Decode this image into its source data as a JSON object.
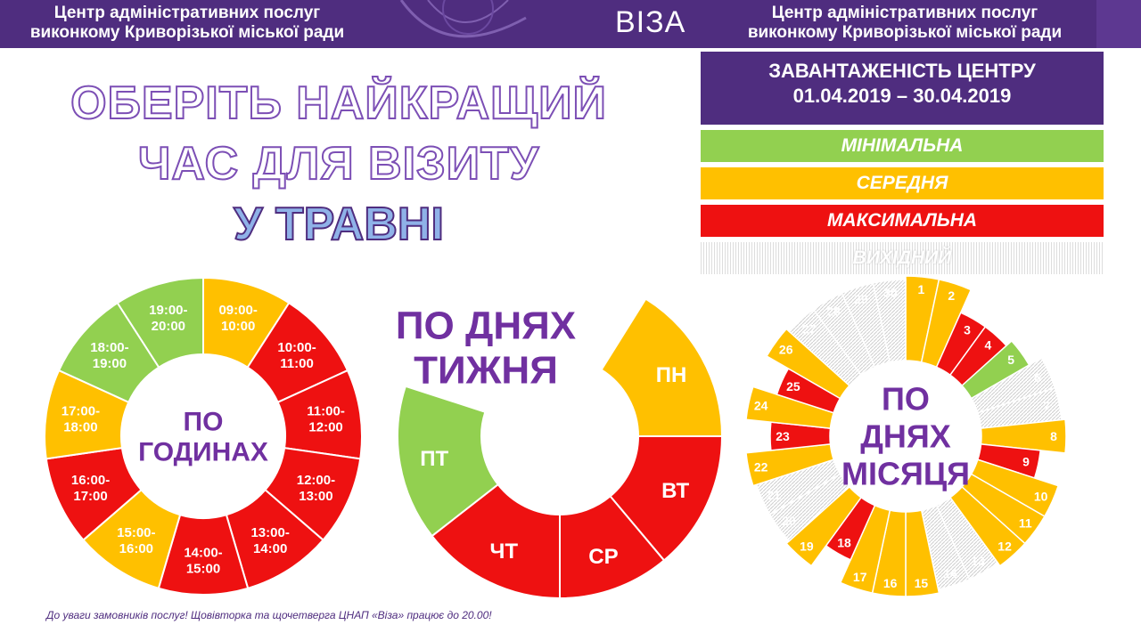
{
  "header": {
    "org_line1": "Центр адміністративних послуг",
    "org_line2": "виконкому Криворізької міської ради",
    "logo": "ВІЗА"
  },
  "title": {
    "line1": "ОБЕРІТЬ НАЙКРАЩИЙ",
    "line2": "ЧАС ДЛЯ ВІЗИТУ",
    "line3": "У ТРАВНІ"
  },
  "legend": {
    "title_line1": "ЗАВАНТАЖЕНІСТЬ ЦЕНТРУ",
    "title_line2": "01.04.2019 – 30.04.2019",
    "levels": [
      {
        "key": "min",
        "label": "МІНІМАЛЬНА",
        "color": "#92d050"
      },
      {
        "key": "mid",
        "label": "СЕРЕДНЯ",
        "color": "#ffc000"
      },
      {
        "key": "max",
        "label": "МАКСИМАЛЬНА",
        "color": "#ee1111"
      },
      {
        "key": "off",
        "label": "ВИХІДНИЙ",
        "color": "#dddddd"
      }
    ]
  },
  "colors": {
    "purple": "#4f2d7f",
    "text_purple": "#7030a0",
    "min": "#92d050",
    "mid": "#ffc000",
    "max": "#ee1111",
    "off": "#dddddd"
  },
  "footnote": "До уваги замовників послуг!  Щовівторка та щочетверга ЦНАП «Віза» працює до 20.00!",
  "chart_data": [
    {
      "type": "pie",
      "variant": "donut",
      "center_label": [
        "ПО",
        "ГОДИНАХ"
      ],
      "categories": [
        [
          "09:00-",
          "10:00"
        ],
        [
          "10:00-",
          "11:00"
        ],
        [
          "11:00-",
          "12:00"
        ],
        [
          "12:00-",
          "13:00"
        ],
        [
          "13:00-",
          "14:00"
        ],
        [
          "14:00-",
          "15:00"
        ],
        [
          "15:00-",
          "16:00"
        ],
        [
          "16:00-",
          "17:00"
        ],
        [
          "17:00-",
          "18:00"
        ],
        [
          "18:00-",
          "19:00"
        ],
        [
          "19:00-",
          "20:00"
        ]
      ],
      "load": [
        "mid",
        "max",
        "max",
        "max",
        "max",
        "max",
        "mid",
        "max",
        "mid",
        "min",
        "min"
      ]
    },
    {
      "type": "pie",
      "variant": "partial-donut",
      "center_label": [
        "ПО ДНЯХ",
        "ТИЖНЯ"
      ],
      "categories": [
        "ПН",
        "ВТ",
        "СР",
        "ЧТ",
        "ПТ"
      ],
      "load": [
        "mid",
        "max",
        "max",
        "max",
        "min"
      ]
    },
    {
      "type": "pie",
      "variant": "radial-month",
      "center_label": [
        "ПО",
        "ДНЯХ",
        "МІСЯЦЯ"
      ],
      "categories": [
        "1",
        "2",
        "3",
        "4",
        "5",
        "6",
        "7",
        "8",
        "9",
        "10",
        "11",
        "12",
        "13",
        "14",
        "15",
        "16",
        "17",
        "18",
        "19",
        "20",
        "21",
        "22",
        "23",
        "24",
        "25",
        "26",
        "27",
        "28",
        "29",
        "30"
      ],
      "load": [
        "mid",
        "mid",
        "max",
        "max",
        "min",
        "off",
        "off",
        "mid",
        "max",
        "mid",
        "mid",
        "mid",
        "off",
        "off",
        "mid",
        "mid",
        "mid",
        "max",
        "mid",
        "off",
        "off",
        "mid",
        "max",
        "mid",
        "max",
        "mid",
        "off",
        "off",
        "off",
        "off"
      ]
    }
  ]
}
